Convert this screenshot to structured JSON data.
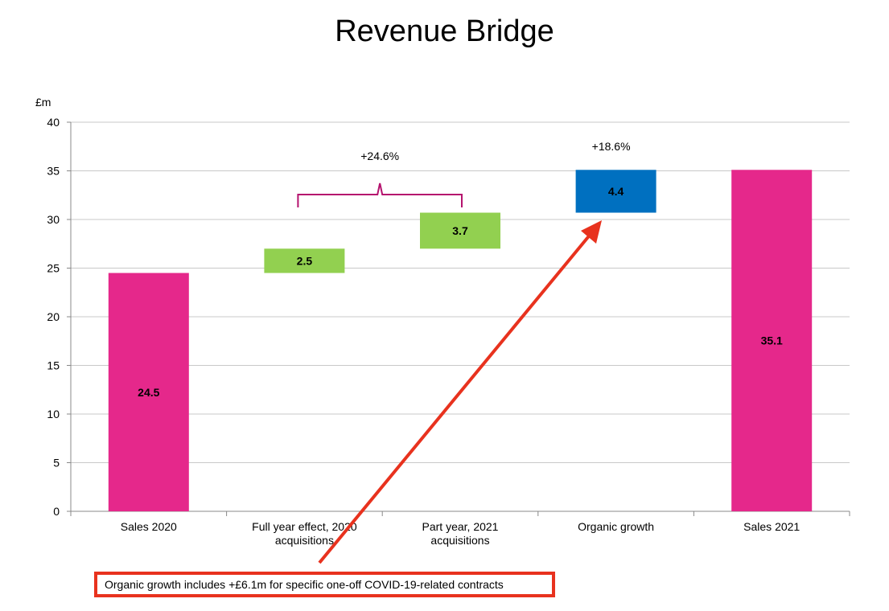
{
  "chart_data": {
    "type": "bar",
    "subtype": "waterfall",
    "title": "Revenue Bridge",
    "ylabel": "£m",
    "xlabel": "",
    "ylim": [
      0,
      40
    ],
    "yticks": [
      "0",
      "5",
      "10",
      "15",
      "20",
      "25",
      "30",
      "35",
      "40"
    ],
    "grid": true,
    "categories": [
      [
        "Sales 2020"
      ],
      [
        "Full year effect, 2020",
        "acquisitions"
      ],
      [
        "Part year, 2021",
        "acquisitions"
      ],
      [
        "Organic growth"
      ],
      [
        "Sales 2021"
      ]
    ],
    "bars": [
      {
        "label": "24.5",
        "base": 0,
        "value": 24.5,
        "color": "#e5288b"
      },
      {
        "label": "2.5",
        "base": 24.5,
        "value": 2.5,
        "color": "#92d050"
      },
      {
        "label": "3.7",
        "base": 27.0,
        "value": 3.7,
        "color": "#92d050"
      },
      {
        "label": "4.4",
        "base": 30.7,
        "value": 4.4,
        "color": "#0070c0"
      },
      {
        "label": "35.1",
        "base": 0,
        "value": 35.1,
        "color": "#e5288b"
      }
    ],
    "annotations": {
      "acquisitions_bracket": "+24.6%",
      "organic": "+18.6%"
    },
    "colors": {
      "bracket": "#b5136e",
      "arrow": "#e8321e",
      "grid": "#c8c8c8"
    }
  },
  "note": {
    "text": "Organic growth includes +£6.1m for specific one-off COVID-19-related contracts"
  }
}
